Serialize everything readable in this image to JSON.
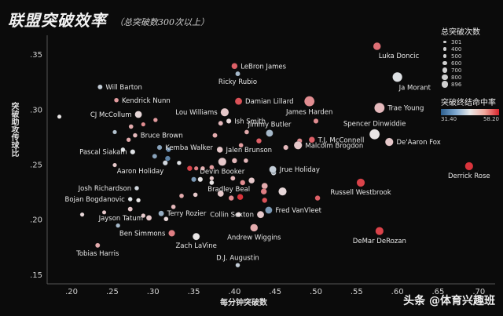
{
  "title": "联盟突破效率",
  "subtitle": "（总突破数300次以上）",
  "watermark": "头条 @体育兴趣班",
  "legend": {
    "size_title": "总突破次数",
    "size_values": [
      "301",
      "400",
      "500",
      "600",
      "700",
      "800",
      "896"
    ],
    "color_title": "突破终结命中率",
    "color_min": "31.40",
    "color_max": "58.20"
  },
  "chart_data": {
    "type": "scatter",
    "xlabel": "每分钟突破数",
    "ylabel": "突破助攻传球比",
    "xlim": [
      0.17,
      0.72
    ],
    "ylim": [
      0.142,
      0.368
    ],
    "xticks": [
      0.2,
      0.25,
      0.3,
      0.35,
      0.4,
      0.45,
      0.5,
      0.55,
      0.6,
      0.65,
      0.7
    ],
    "yticks": [
      0.15,
      0.2,
      0.25,
      0.3,
      0.35
    ],
    "xtick_labels": [
      ".20",
      ".25",
      ".30",
      ".35",
      ".40",
      ".45",
      ".50",
      ".55",
      ".60",
      ".65",
      ".70"
    ],
    "ytick_labels": [
      ".15",
      ".20",
      ".25",
      ".30",
      ".35"
    ],
    "size_range": [
      301,
      896
    ],
    "color_range": [
      31.4,
      58.2
    ],
    "colors": {
      "low": "#2c5f8f",
      "mid": "#e9e9e9",
      "high": "#d7222b"
    },
    "labeled_points": [
      {
        "label": "Luka Doncic",
        "x": 0.575,
        "y": 0.358,
        "size": 650,
        "color": 53,
        "anchor": "below-right"
      },
      {
        "label": "LeBron James",
        "x": 0.4,
        "y": 0.34,
        "size": 500,
        "color": 54,
        "anchor": "right"
      },
      {
        "label": "Ricky Rubio",
        "x": 0.404,
        "y": 0.333,
        "size": 380,
        "color": 40,
        "anchor": "below"
      },
      {
        "label": "Ja Morant",
        "x": 0.6,
        "y": 0.33,
        "size": 850,
        "color": 44,
        "anchor": "below-right"
      },
      {
        "label": "Will Barton",
        "x": 0.235,
        "y": 0.321,
        "size": 380,
        "color": 42,
        "anchor": "right"
      },
      {
        "label": "Kendrick Nunn",
        "x": 0.255,
        "y": 0.309,
        "size": 360,
        "color": 50,
        "anchor": "right"
      },
      {
        "label": "Damian Lillard",
        "x": 0.405,
        "y": 0.308,
        "size": 600,
        "color": 55,
        "anchor": "right"
      },
      {
        "label": "James Harden",
        "x": 0.492,
        "y": 0.308,
        "size": 896,
        "color": 51,
        "anchor": "below"
      },
      {
        "label": "Trae Young",
        "x": 0.578,
        "y": 0.302,
        "size": 896,
        "color": 48,
        "anchor": "right"
      },
      {
        "label": "CJ McCollum",
        "x": 0.282,
        "y": 0.296,
        "size": 600,
        "color": 46,
        "anchor": "left"
      },
      {
        "label": "Lou Williams",
        "x": 0.388,
        "y": 0.298,
        "size": 700,
        "color": 47,
        "anchor": "left"
      },
      {
        "label": "Ish Smith",
        "x": 0.393,
        "y": 0.29,
        "size": 400,
        "color": 46,
        "anchor": "right"
      },
      {
        "label": "Jimmy Butler",
        "x": 0.443,
        "y": 0.279,
        "size": 600,
        "color": 40,
        "anchor": "above"
      },
      {
        "label": "Spencer Dinwiddie",
        "x": 0.572,
        "y": 0.278,
        "size": 896,
        "color": 45,
        "anchor": "above"
      },
      {
        "label": "Bruce Brown",
        "x": 0.278,
        "y": 0.277,
        "size": 350,
        "color": 48,
        "anchor": "right"
      },
      {
        "label": "T.J. McConnell",
        "x": 0.495,
        "y": 0.273,
        "size": 500,
        "color": 54,
        "anchor": "right"
      },
      {
        "label": "De'Aaron Fox",
        "x": 0.59,
        "y": 0.271,
        "size": 700,
        "color": 47,
        "anchor": "right"
      },
      {
        "label": "Kemba Walker",
        "x": 0.308,
        "y": 0.266,
        "size": 400,
        "color": 38,
        "anchor": "right"
      },
      {
        "label": "Malcolm Brogdon",
        "x": 0.478,
        "y": 0.268,
        "size": 700,
        "color": 47,
        "anchor": "right"
      },
      {
        "label": "Pascal Siakam",
        "x": 0.275,
        "y": 0.262,
        "size": 400,
        "color": 44,
        "anchor": "left"
      },
      {
        "label": "Jalen Brunson",
        "x": 0.382,
        "y": 0.264,
        "size": 500,
        "color": 47,
        "anchor": "right"
      },
      {
        "label": "Derrick Rose",
        "x": 0.688,
        "y": 0.249,
        "size": 700,
        "color": 57,
        "anchor": "below"
      },
      {
        "label": "Aaron Holiday",
        "x": 0.315,
        "y": 0.252,
        "size": 400,
        "color": 43,
        "anchor": "below-left"
      },
      {
        "label": "Devin Booker",
        "x": 0.385,
        "y": 0.253,
        "size": 700,
        "color": 47,
        "anchor": "below"
      },
      {
        "label": "Jrue Holiday",
        "x": 0.447,
        "y": 0.246,
        "size": 600,
        "color": 42,
        "anchor": "right"
      },
      {
        "label": "Bradley Beal",
        "x": 0.421,
        "y": 0.236,
        "size": 500,
        "color": 47,
        "anchor": "below-left"
      },
      {
        "label": "Russell Westbrook",
        "x": 0.555,
        "y": 0.234,
        "size": 700,
        "color": 56,
        "anchor": "below"
      },
      {
        "label": "Josh Richardson",
        "x": 0.28,
        "y": 0.229,
        "size": 350,
        "color": 43,
        "anchor": "left"
      },
      {
        "label": "Bojan Bogdanovic",
        "x": 0.272,
        "y": 0.219,
        "size": 350,
        "color": 44,
        "anchor": "left"
      },
      {
        "label": "Terry Rozier",
        "x": 0.31,
        "y": 0.206,
        "size": 450,
        "color": 39,
        "anchor": "right"
      },
      {
        "label": "Collin Sexton",
        "x": 0.432,
        "y": 0.205,
        "size": 600,
        "color": 47,
        "anchor": "left"
      },
      {
        "label": "Fred VanVleet",
        "x": 0.442,
        "y": 0.209,
        "size": 600,
        "color": 37,
        "anchor": "right"
      },
      {
        "label": "Jayson Tatum",
        "x": 0.295,
        "y": 0.202,
        "size": 450,
        "color": 47,
        "anchor": "left"
      },
      {
        "label": "Ben Simmons",
        "x": 0.323,
        "y": 0.188,
        "size": 550,
        "color": 52,
        "anchor": "left"
      },
      {
        "label": "Andrew Wiggins",
        "x": 0.424,
        "y": 0.193,
        "size": 650,
        "color": 49,
        "anchor": "below"
      },
      {
        "label": "DeMar DeRozan",
        "x": 0.578,
        "y": 0.19,
        "size": 700,
        "color": 56,
        "anchor": "below"
      },
      {
        "label": "Zach LaVine",
        "x": 0.353,
        "y": 0.185,
        "size": 600,
        "color": 45,
        "anchor": "below"
      },
      {
        "label": "Tobias Harris",
        "x": 0.232,
        "y": 0.177,
        "size": 380,
        "color": 49,
        "anchor": "below"
      },
      {
        "label": "D.J. Augustin",
        "x": 0.404,
        "y": 0.159,
        "size": 350,
        "color": 42,
        "anchor": "above"
      }
    ],
    "unlabeled_points": [
      {
        "x": 0.185,
        "y": 0.294,
        "size": 320,
        "color": 45
      },
      {
        "x": 0.253,
        "y": 0.28,
        "size": 330,
        "color": 41
      },
      {
        "x": 0.273,
        "y": 0.285,
        "size": 360,
        "color": 49
      },
      {
        "x": 0.288,
        "y": 0.287,
        "size": 330,
        "color": 51
      },
      {
        "x": 0.303,
        "y": 0.291,
        "size": 340,
        "color": 50
      },
      {
        "x": 0.27,
        "y": 0.273,
        "size": 340,
        "color": 49
      },
      {
        "x": 0.263,
        "y": 0.264,
        "size": 350,
        "color": 44
      },
      {
        "x": 0.253,
        "y": 0.25,
        "size": 330,
        "color": 47
      },
      {
        "x": 0.302,
        "y": 0.258,
        "size": 380,
        "color": 38
      },
      {
        "x": 0.319,
        "y": 0.264,
        "size": 380,
        "color": 36
      },
      {
        "x": 0.318,
        "y": 0.256,
        "size": 420,
        "color": 35
      },
      {
        "x": 0.332,
        "y": 0.252,
        "size": 340,
        "color": 44
      },
      {
        "x": 0.345,
        "y": 0.247,
        "size": 420,
        "color": 56
      },
      {
        "x": 0.353,
        "y": 0.247,
        "size": 330,
        "color": 52
      },
      {
        "x": 0.361,
        "y": 0.247,
        "size": 340,
        "color": 49
      },
      {
        "x": 0.372,
        "y": 0.248,
        "size": 360,
        "color": 50
      },
      {
        "x": 0.358,
        "y": 0.237,
        "size": 400,
        "color": 45
      },
      {
        "x": 0.372,
        "y": 0.238,
        "size": 340,
        "color": 47
      },
      {
        "x": 0.398,
        "y": 0.238,
        "size": 380,
        "color": 48
      },
      {
        "x": 0.4,
        "y": 0.254,
        "size": 420,
        "color": 48
      },
      {
        "x": 0.414,
        "y": 0.254,
        "size": 360,
        "color": 48
      },
      {
        "x": 0.408,
        "y": 0.268,
        "size": 360,
        "color": 50
      },
      {
        "x": 0.43,
        "y": 0.272,
        "size": 420,
        "color": 54
      },
      {
        "x": 0.415,
        "y": 0.28,
        "size": 360,
        "color": 49
      },
      {
        "x": 0.383,
        "y": 0.288,
        "size": 380,
        "color": 48
      },
      {
        "x": 0.376,
        "y": 0.277,
        "size": 380,
        "color": 49
      },
      {
        "x": 0.383,
        "y": 0.224,
        "size": 520,
        "color": 47
      },
      {
        "x": 0.396,
        "y": 0.22,
        "size": 420,
        "color": 51
      },
      {
        "x": 0.407,
        "y": 0.221,
        "size": 500,
        "color": 57
      },
      {
        "x": 0.437,
        "y": 0.231,
        "size": 520,
        "color": 49
      },
      {
        "x": 0.448,
        "y": 0.243,
        "size": 420,
        "color": 43
      },
      {
        "x": 0.436,
        "y": 0.226,
        "size": 500,
        "color": 52
      },
      {
        "x": 0.437,
        "y": 0.218,
        "size": 420,
        "color": 55
      },
      {
        "x": 0.459,
        "y": 0.226,
        "size": 700,
        "color": 46
      },
      {
        "x": 0.448,
        "y": 0.244,
        "size": 340,
        "color": 41
      },
      {
        "x": 0.502,
        "y": 0.22,
        "size": 420,
        "color": 54
      },
      {
        "x": 0.5,
        "y": 0.29,
        "size": 400,
        "color": 51
      },
      {
        "x": 0.48,
        "y": 0.272,
        "size": 400,
        "color": 51
      },
      {
        "x": 0.463,
        "y": 0.266,
        "size": 400,
        "color": 48
      },
      {
        "x": 0.335,
        "y": 0.222,
        "size": 360,
        "color": 49
      },
      {
        "x": 0.352,
        "y": 0.223,
        "size": 360,
        "color": 47
      },
      {
        "x": 0.325,
        "y": 0.212,
        "size": 360,
        "color": 48
      },
      {
        "x": 0.316,
        "y": 0.201,
        "size": 360,
        "color": 46
      },
      {
        "x": 0.288,
        "y": 0.204,
        "size": 340,
        "color": 47
      },
      {
        "x": 0.272,
        "y": 0.21,
        "size": 380,
        "color": 47
      },
      {
        "x": 0.282,
        "y": 0.218,
        "size": 340,
        "color": 45
      },
      {
        "x": 0.24,
        "y": 0.207,
        "size": 320,
        "color": 47
      },
      {
        "x": 0.257,
        "y": 0.195,
        "size": 340,
        "color": 40
      },
      {
        "x": 0.213,
        "y": 0.205,
        "size": 330,
        "color": 46
      },
      {
        "x": 0.405,
        "y": 0.205,
        "size": 400,
        "color": 46
      },
      {
        "x": 0.35,
        "y": 0.237,
        "size": 400,
        "color": 37
      },
      {
        "x": 0.41,
        "y": 0.234,
        "size": 420,
        "color": 51
      },
      {
        "x": 0.372,
        "y": 0.234,
        "size": 360,
        "color": 45
      }
    ]
  }
}
